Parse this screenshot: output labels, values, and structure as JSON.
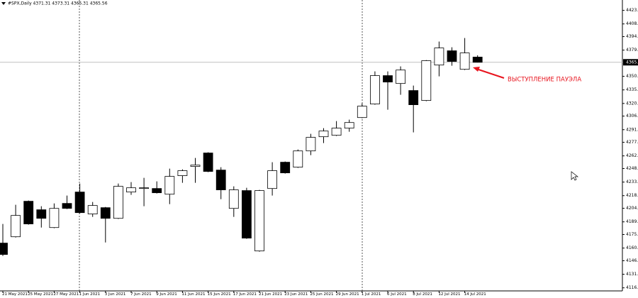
{
  "chart_data": {
    "type": "candlestick",
    "title": "#SPX,Daily  4371.31 4373.31 4365.31 4365.56",
    "annotation": "ВЫСТУПЛЕНИЕ ПАУЭЛА",
    "categories": [
      "21 May 2021",
      null,
      "25 May 2021",
      null,
      "27 May 2021",
      null,
      "1 Jun 2021",
      null,
      "3 Jun 2021",
      null,
      "7 Jun 2021",
      null,
      "9 Jun 2021",
      null,
      "11 Jun 2021",
      null,
      "15 Jun 2021",
      null,
      "17 Jun 2021",
      null,
      "21 Jun 2021",
      null,
      "23 Jun 2021",
      null,
      "25 Jun 2021",
      null,
      "29 Jun 2021",
      null,
      "1 Jul 2021",
      null,
      "6 Jul 2021",
      null,
      "8 Jul 2021",
      null,
      "12 Jul 2021",
      null,
      "14 Jul 2021",
      null
    ],
    "open": [
      4165.5,
      4172.5,
      4211.8,
      4202.4,
      4182.7,
      4209.4,
      4222.0,
      4197.7,
      4204.7,
      4192.9,
      4222.0,
      4225.9,
      4225.9,
      4219.6,
      4240.1,
      4250.3,
      4265.2,
      4246.3,
      4203.9,
      4223.6,
      4156.8,
      4225.9,
      4255.0,
      4249.5,
      4267.5,
      4283.2,
      4284.8,
      4292.7,
      4304.4,
      4319.4,
      4350.8,
      4342.1,
      4334.3,
      4323.3,
      4362.5,
      4378.3,
      4357.8,
      4371.31
    ],
    "high": [
      4186.7,
      4207.9,
      4212.6,
      4206.3,
      4209.4,
      4218.1,
      4231.4,
      4211.0,
      4205.5,
      4231.4,
      4233.0,
      4237.7,
      4233.8,
      4247.9,
      4247.1,
      4259.7,
      4266.0,
      4249.5,
      4228.3,
      4226.7,
      4224.4,
      4255.0,
      4255.8,
      4269.1,
      4286.4,
      4292.7,
      4300.5,
      4302.1,
      4320.1,
      4355.5,
      4355.5,
      4361.0,
      4339.8,
      4368.0,
      4388.5,
      4382.2,
      4392.4,
      4373.31
    ],
    "low": [
      4151.3,
      4171.7,
      4185.9,
      4182.7,
      4182.0,
      4203.2,
      4198.4,
      4194.5,
      4166.2,
      4192.2,
      4218.9,
      4206.3,
      4220.4,
      4208.6,
      4232.2,
      4232.2,
      4244.0,
      4214.1,
      4194.5,
      4170.2,
      4156.0,
      4218.1,
      4242.4,
      4248.7,
      4262.8,
      4276.2,
      4284.0,
      4288.7,
      4303.7,
      4318.6,
      4313.1,
      4329.6,
      4288.0,
      4322.5,
      4350.0,
      4361.8,
      4357.0,
      4365.31
    ],
    "close": [
      4152.9,
      4196.1,
      4186.7,
      4192.9,
      4203.9,
      4203.9,
      4199.2,
      4207.1,
      4192.9,
      4228.3,
      4226.7,
      4226.7,
      4221.2,
      4239.3,
      4245.6,
      4251.8,
      4244.8,
      4224.4,
      4224.4,
      4171.0,
      4223.6,
      4245.6,
      4243.2,
      4267.5,
      4282.5,
      4289.5,
      4292.7,
      4298.9,
      4317.0,
      4350.8,
      4343.7,
      4357.0,
      4318.6,
      4367.3,
      4381.4,
      4366.5,
      4375.9,
      4365.56
    ],
    "up_color": "#ffffff",
    "down_color": "#000000",
    "outline_color": "#000000",
    "current_price": {
      "value": 4365.56,
      "label": "4365."
    },
    "ylim": [
      4112.6,
      4432.9
    ],
    "yticks": [
      {
        "value": 4423,
        "label": "4423."
      },
      {
        "value": 4408,
        "label": "4408."
      },
      {
        "value": 4394,
        "label": "4394."
      },
      {
        "value": 4379,
        "label": "4379."
      },
      {
        "value": 4350,
        "label": "4350."
      },
      {
        "value": 4335,
        "label": "4335."
      },
      {
        "value": 4320,
        "label": "4320."
      },
      {
        "value": 4306,
        "label": "4306."
      },
      {
        "value": 4291,
        "label": "4291."
      },
      {
        "value": 4277,
        "label": "4277."
      },
      {
        "value": 4262,
        "label": "4262."
      },
      {
        "value": 4248,
        "label": "4248."
      },
      {
        "value": 4233,
        "label": "4233."
      },
      {
        "value": 4218,
        "label": "4218."
      },
      {
        "value": 4204,
        "label": "4204."
      },
      {
        "value": 4189,
        "label": "4189."
      },
      {
        "value": 4175,
        "label": "4175."
      },
      {
        "value": 4160,
        "label": "4160."
      },
      {
        "value": 4146,
        "label": "4146."
      },
      {
        "value": 4131,
        "label": "4131."
      },
      {
        "value": 4116,
        "label": "4116."
      }
    ],
    "grid": false
  }
}
